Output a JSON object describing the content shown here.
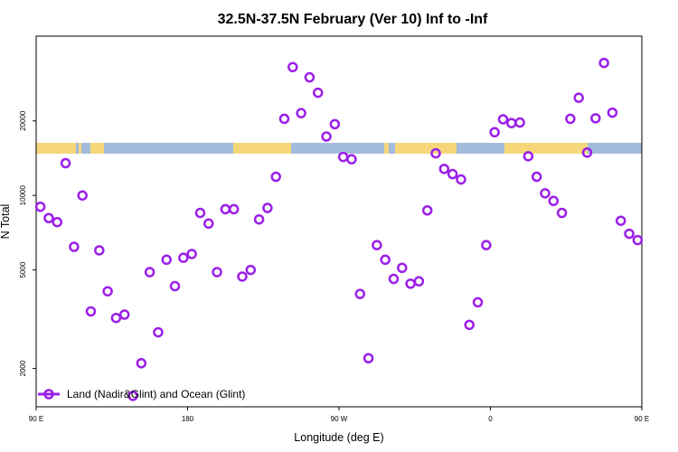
{
  "chart_data": {
    "type": "scatter",
    "title": "32.5N-37.5N February (Ver 10)   Inf to -Inf",
    "xlabel": "Longitude (deg E)",
    "ylabel": "N Total",
    "xlim": [
      90,
      450
    ],
    "ylim": [
      1400,
      44000
    ],
    "y_scale": "log",
    "x_ticks": [
      {
        "value": 90,
        "label": "90 E"
      },
      {
        "value": 180,
        "label": "180"
      },
      {
        "value": 270,
        "label": "90 W"
      },
      {
        "value": 360,
        "label": "0"
      },
      {
        "value": 450,
        "label": "90 E"
      },
      {
        "value": 540,
        "label": "180"
      }
    ],
    "y_ticks": [
      {
        "value": 2000,
        "label": "2000"
      },
      {
        "value": 5000,
        "label": "5000"
      },
      {
        "value": 10000,
        "label": "10000"
      },
      {
        "value": 20000,
        "label": "20000"
      }
    ],
    "grid": false,
    "legend_position": "bottom-left",
    "series": [
      {
        "name": "Land (Nadir&Glint) and Ocean (Glint)",
        "color": "#9b1fe8",
        "x": [
          92.5,
          97.5,
          102.5,
          107.5,
          112.5,
          117.5,
          122.5,
          127.5,
          132.5,
          137.5,
          142.5,
          147.5,
          152.5,
          157.5,
          162.5,
          167.5,
          172.5,
          177.5,
          182.5,
          187.5,
          192.5,
          197.5,
          202.5,
          207.5,
          212.5,
          217.5,
          222.5,
          227.5,
          232.5,
          237.5,
          242.5,
          247.5,
          252.5,
          257.5,
          262.5,
          267.5,
          272.5,
          277.5,
          282.5,
          287.5,
          292.5,
          297.5,
          302.5,
          307.5,
          312.5,
          317.5,
          322.5,
          327.5,
          332.5,
          337.5,
          342.5,
          347.5,
          352.5,
          357.5,
          362.5,
          367.5,
          372.5,
          377.5,
          382.5,
          387.5,
          392.5,
          397.5,
          402.5,
          407.5,
          412.5,
          417.5,
          422.5,
          427.5,
          432.5,
          437.5,
          442.5,
          447.5
        ],
        "y": [
          9000,
          8100,
          7800,
          13500,
          6200,
          10000,
          3400,
          6000,
          4100,
          3200,
          3300,
          1550,
          2100,
          4900,
          2800,
          5500,
          4300,
          5600,
          5800,
          8500,
          7700,
          4900,
          8800,
          8800,
          4700,
          5000,
          8000,
          8900,
          11900,
          20400,
          33000,
          21500,
          30000,
          26000,
          17300,
          19400,
          14300,
          14000,
          4000,
          2200,
          6300,
          5500,
          4600,
          5100,
          4400,
          4500,
          8700,
          14800,
          12800,
          12200,
          11600,
          3000,
          3700,
          6300,
          18000,
          20300,
          19600,
          19700,
          14400,
          11900,
          10200,
          9500,
          8500,
          20400,
          24800,
          14900,
          20500,
          34300,
          21600,
          7900,
          7000,
          6600
        ],
        "x_labels_wrap_note": ""
      }
    ]
  },
  "legend": {
    "label": "Land (Nadir&Glint) and Ocean (Glint)"
  }
}
